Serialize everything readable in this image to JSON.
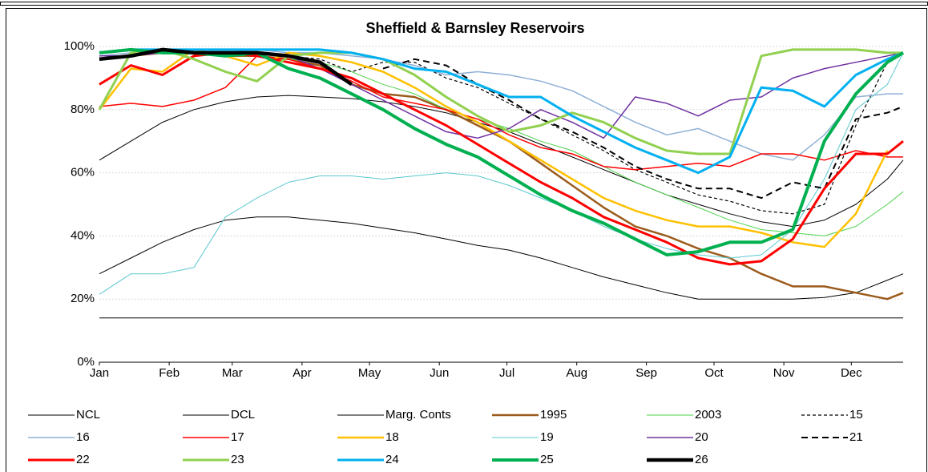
{
  "chart_data": {
    "type": "line",
    "title": "Sheffield & Barnsley Reservoirs",
    "x": [
      0,
      2,
      4,
      6,
      8,
      10,
      12,
      14,
      16,
      18,
      20,
      22,
      24,
      26,
      28,
      30,
      32,
      34,
      36,
      38,
      40,
      42,
      44,
      46,
      48,
      50,
      51
    ],
    "xlim": [
      0,
      51
    ],
    "xticks": [
      {
        "value": 0,
        "label": "Jan"
      },
      {
        "value": 4.43,
        "label": "Feb"
      },
      {
        "value": 8.43,
        "label": "Mar"
      },
      {
        "value": 12.86,
        "label": "Apr"
      },
      {
        "value": 17.14,
        "label": "May"
      },
      {
        "value": 21.57,
        "label": "Jun"
      },
      {
        "value": 25.86,
        "label": "Jul"
      },
      {
        "value": 30.29,
        "label": "Aug"
      },
      {
        "value": 34.71,
        "label": "Sep"
      },
      {
        "value": 39,
        "label": "Oct"
      },
      {
        "value": 43.43,
        "label": "Nov"
      },
      {
        "value": 47.71,
        "label": "Dec"
      }
    ],
    "ylim": [
      0,
      100
    ],
    "yticks": [
      {
        "value": 0,
        "label": "0%"
      },
      {
        "value": 20,
        "label": "20%"
      },
      {
        "value": 40,
        "label": "40%"
      },
      {
        "value": 60,
        "label": "60%"
      },
      {
        "value": 80,
        "label": "80%"
      },
      {
        "value": 100,
        "label": "100%"
      }
    ],
    "grid": true,
    "legend": "bottom",
    "series": [
      {
        "name": "NCL",
        "color": "#000000",
        "width": 1,
        "values": [
          14,
          14,
          14,
          14,
          14,
          14,
          14,
          14,
          14,
          14,
          14,
          14,
          14,
          14,
          14,
          14,
          14,
          14,
          14,
          14,
          14,
          14,
          14,
          14,
          14,
          14,
          14
        ]
      },
      {
        "name": "DCL",
        "color": "#000000",
        "width": 1,
        "values": [
          28,
          33,
          38,
          42,
          45,
          46,
          46,
          45,
          44,
          42.5,
          41,
          39,
          37,
          35.5,
          33,
          30,
          27,
          24.5,
          22,
          20,
          20,
          20,
          20,
          20.5,
          22,
          26,
          28
        ]
      },
      {
        "name": "Marg. Conts",
        "color": "#000000",
        "width": 1,
        "values": [
          64,
          70,
          76,
          80,
          82.5,
          84,
          84.5,
          84,
          83.5,
          82.5,
          81,
          79,
          76,
          73,
          69,
          65,
          61,
          57,
          53,
          50,
          47,
          44.5,
          43,
          45,
          50,
          58,
          64
        ]
      },
      {
        "name": "1995",
        "color": "#9c5b1c",
        "width": 2.5,
        "values": [
          96,
          97,
          98,
          98,
          97,
          97,
          96,
          94,
          88,
          85,
          84,
          80,
          75,
          70,
          63,
          56,
          49,
          43,
          40,
          36,
          33,
          28,
          24,
          24,
          22,
          20,
          22
        ]
      },
      {
        "name": "2003",
        "color": "#4cd44c",
        "width": 1,
        "values": [
          98,
          99,
          99,
          98,
          97,
          97,
          96,
          95,
          92,
          88,
          85,
          80,
          77,
          74,
          70,
          67,
          62,
          57,
          53,
          49,
          45,
          42,
          41,
          40,
          43,
          50,
          54
        ]
      },
      {
        "name": "15",
        "color": "#000000",
        "width": 1.2,
        "dash": true,
        "values": [
          null,
          null,
          null,
          null,
          null,
          null,
          97,
          96,
          92,
          95,
          95,
          90,
          87,
          82,
          77,
          72,
          67,
          61,
          57,
          53,
          51,
          48,
          47,
          50,
          75,
          95,
          98
        ]
      },
      {
        "name": "16",
        "color": "#8fb0d6",
        "width": 1.5,
        "values": [
          97,
          98,
          98,
          98,
          98,
          99,
          98,
          98,
          97,
          96,
          94,
          91,
          92,
          91,
          89,
          86,
          81,
          76,
          72,
          74,
          70,
          66,
          64,
          72,
          84,
          85,
          85
        ]
      },
      {
        "name": "17",
        "color": "#ff0000",
        "width": 1.5,
        "values": [
          81,
          82,
          81,
          83,
          87,
          97,
          96,
          93,
          89,
          84,
          82,
          80,
          77,
          72,
          68,
          66,
          62,
          61,
          62,
          63,
          62,
          66,
          66,
          64,
          67,
          65,
          65
        ]
      },
      {
        "name": "18",
        "color": "#ffc000",
        "width": 2.5,
        "values": [
          80,
          93,
          92,
          99,
          97,
          94,
          98,
          97,
          95,
          92,
          87,
          81,
          76,
          70,
          64,
          58,
          52,
          48,
          45,
          43,
          43,
          41,
          38,
          36.5,
          47,
          67,
          null
        ]
      },
      {
        "name": "19",
        "color": "#5cc8d0",
        "width": 1,
        "values": [
          21.5,
          28,
          28,
          30,
          46,
          52,
          57,
          59,
          59,
          58,
          59,
          60,
          59,
          56,
          52,
          48,
          43,
          39,
          36,
          34,
          33,
          34,
          42,
          58,
          80,
          88,
          98
        ]
      },
      {
        "name": "20",
        "color": "#7030a0",
        "width": 1.5,
        "values": [
          97,
          97,
          98,
          98,
          98,
          98,
          97,
          93,
          88,
          83,
          78,
          73,
          71,
          74,
          80,
          76,
          71,
          84,
          82,
          78,
          83,
          84,
          90,
          93,
          95,
          97,
          98
        ]
      },
      {
        "name": "21",
        "color": "#000000",
        "width": 2,
        "dash": true,
        "values": [
          null,
          null,
          null,
          null,
          null,
          null,
          null,
          null,
          null,
          93,
          96,
          94,
          88,
          83,
          77,
          73,
          68,
          62,
          58,
          55,
          55,
          52,
          57,
          55,
          77,
          79,
          81
        ]
      },
      {
        "name": "22",
        "color": "#ff0000",
        "width": 3,
        "values": [
          88,
          94,
          91,
          97,
          98,
          97,
          95,
          93,
          90,
          85,
          80,
          75,
          69,
          63,
          57,
          52,
          46,
          42,
          38,
          33,
          31,
          32,
          39,
          55,
          66,
          66,
          70
        ]
      },
      {
        "name": "23",
        "color": "#92d050",
        "width": 3,
        "values": [
          80,
          98,
          99,
          96,
          92,
          89,
          97,
          98,
          98,
          96,
          91,
          84,
          78,
          73,
          75,
          79,
          76,
          71,
          67,
          66,
          66,
          97,
          99,
          99,
          99,
          98,
          98
        ]
      },
      {
        "name": "24",
        "color": "#00b0f0",
        "width": 3,
        "values": [
          98,
          99,
          99,
          99,
          99,
          99,
          99,
          99,
          98,
          96,
          93,
          92,
          88,
          84,
          84,
          78,
          73,
          68,
          64,
          60,
          65,
          87,
          86,
          81,
          91,
          96,
          98
        ]
      },
      {
        "name": "25",
        "color": "#00b050",
        "width": 4,
        "values": [
          98,
          99,
          98,
          98,
          97,
          98,
          93,
          90,
          85,
          80,
          74,
          69,
          65,
          59,
          53,
          48,
          44,
          39,
          34,
          35,
          38,
          38,
          42,
          70,
          85,
          95,
          98
        ]
      },
      {
        "name": "26",
        "color": "#000000",
        "width": 4.5,
        "values": [
          96,
          97,
          99,
          98,
          98,
          98,
          97,
          95,
          88,
          null,
          null,
          null,
          null,
          null,
          null,
          null,
          null,
          null,
          null,
          null,
          null,
          null,
          null,
          null,
          null,
          null,
          null
        ]
      }
    ]
  }
}
